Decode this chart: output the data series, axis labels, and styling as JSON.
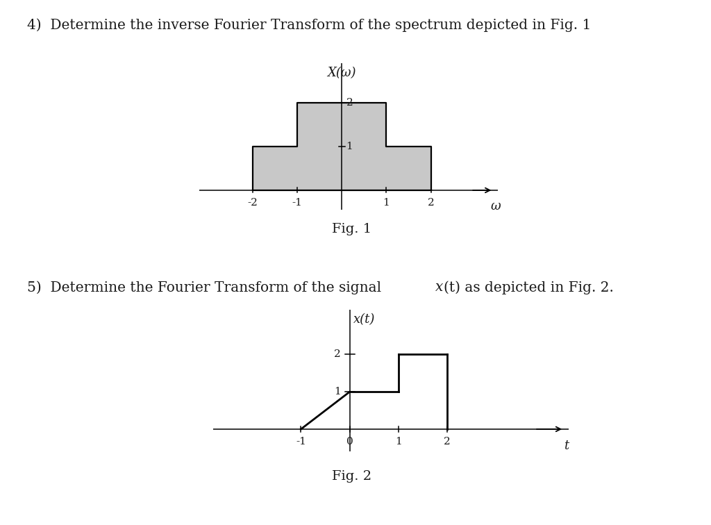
{
  "title4": "4)  Determine the inverse Fourier Transform of the spectrum depicted in Fig. 1",
  "title5_part1": "5)  Determine the Fourier Transform of the signal ",
  "title5_part2": "x",
  "title5_part3": "(t) as depicted in Fig. 2.",
  "fig1_caption": "Fig. 1",
  "fig2_caption": "Fig. 2",
  "fig1_ylabel": "X(ω)",
  "fig1_xlabel": "ω",
  "fig2_ylabel": "x(t)",
  "fig2_xlabel": "t",
  "fig1_xticks": [
    -2,
    -1,
    1,
    2
  ],
  "fig1_ytick1": 1,
  "fig1_ytick2": 2,
  "fig1_xlim": [
    -3.2,
    3.5
  ],
  "fig1_ylim": [
    -0.45,
    2.9
  ],
  "fig2_xticks": [
    -1,
    0,
    1,
    2
  ],
  "fig2_ytick1": 1,
  "fig2_ytick2": 2,
  "fig2_xlim": [
    -2.8,
    4.5
  ],
  "fig2_ylim": [
    -0.6,
    3.2
  ],
  "fill_color": "#c8c8c8",
  "line_color": "#000000",
  "bg_color": "#ffffff",
  "text_color": "#1a1a1a",
  "title_fontsize": 14.5,
  "label_fontsize": 13,
  "tick_fontsize": 11,
  "caption_fontsize": 14
}
